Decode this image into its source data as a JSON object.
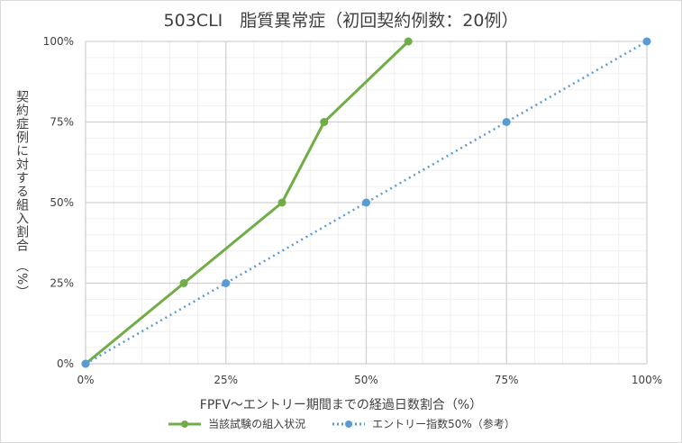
{
  "chart_data": {
    "type": "line",
    "title": "503CLI　脂質異常症（初回契約例数：20例）",
    "xlabel": "FPFV～エントリー期間までの経過日数割合（%）",
    "ylabel": "契約症例に対する組入割合　（%）",
    "xlim": [
      0,
      100
    ],
    "ylim": [
      0,
      100
    ],
    "x_ticks": [
      "0%",
      "25%",
      "50%",
      "75%",
      "100%"
    ],
    "y_ticks": [
      "0%",
      "25%",
      "50%",
      "75%",
      "100%"
    ],
    "grid": true,
    "legend_position": "bottom",
    "series": [
      {
        "name": "当該試験の組入状況",
        "color": "#70ad47",
        "style": "solid",
        "x": [
          0,
          17.5,
          35,
          42.5,
          57.5
        ],
        "y": [
          0,
          25,
          50,
          75,
          100
        ]
      },
      {
        "name": "エントリー指数50%（参考）",
        "color": "#5b9bd5",
        "style": "dotted",
        "x": [
          0,
          25,
          50,
          75,
          100
        ],
        "y": [
          0,
          25,
          50,
          75,
          100
        ]
      }
    ]
  }
}
